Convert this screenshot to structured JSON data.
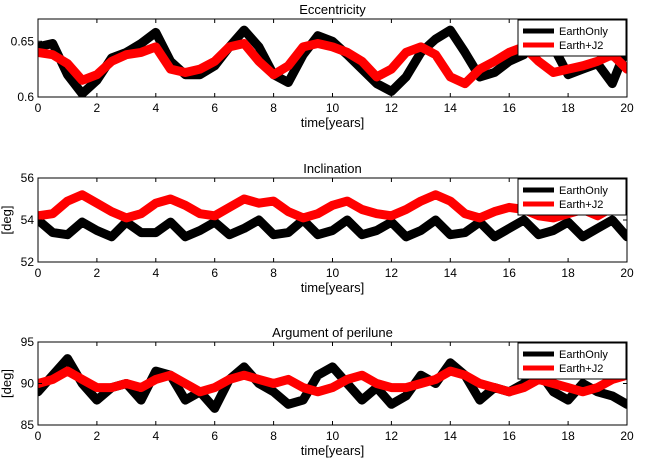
{
  "colors": {
    "earth_only": "#000000",
    "earth_j2": "#ff0000"
  },
  "chart_data": [
    {
      "type": "line",
      "title": "Eccentricity",
      "xlabel": "time[years]",
      "ylabel": "",
      "xlim": [
        0,
        20
      ],
      "ylim": [
        0.6,
        0.67
      ],
      "xticks": [
        0,
        2,
        4,
        6,
        8,
        10,
        12,
        14,
        16,
        18,
        20
      ],
      "yticks": [
        0.6,
        0.65
      ],
      "ytick_labels": [
        "0.6",
        "0.65"
      ],
      "legend": "top-right",
      "grid": false,
      "series": [
        {
          "name": "EarthOnly",
          "color": "#000000",
          "x": [
            0,
            0.5,
            1,
            1.5,
            2,
            2.5,
            3,
            3.5,
            4,
            4.5,
            5,
            5.5,
            6,
            6.5,
            7,
            7.5,
            8,
            8.5,
            9,
            9.5,
            10,
            10.5,
            11,
            11.5,
            12,
            12.5,
            13,
            13.5,
            14,
            14.5,
            15,
            15.5,
            16,
            16.5,
            17,
            17.5,
            18,
            18.5,
            19,
            19.5,
            20
          ],
          "y": [
            0.645,
            0.648,
            0.62,
            0.603,
            0.615,
            0.635,
            0.64,
            0.648,
            0.658,
            0.632,
            0.62,
            0.62,
            0.628,
            0.645,
            0.66,
            0.645,
            0.62,
            0.613,
            0.638,
            0.655,
            0.65,
            0.638,
            0.625,
            0.612,
            0.605,
            0.618,
            0.64,
            0.652,
            0.66,
            0.64,
            0.618,
            0.622,
            0.632,
            0.638,
            0.66,
            0.645,
            0.62,
            0.625,
            0.63,
            0.612,
            0.645
          ]
        },
        {
          "name": "Earth+J2",
          "color": "#ff0000",
          "x": [
            0,
            0.5,
            1,
            1.5,
            2,
            2.5,
            3,
            3.5,
            4,
            4.5,
            5,
            5.5,
            6,
            6.5,
            7,
            7.5,
            8,
            8.5,
            9,
            9.5,
            10,
            10.5,
            11,
            11.5,
            12,
            12.5,
            13,
            13.5,
            14,
            14.5,
            15,
            15.5,
            16,
            16.5,
            17,
            17.5,
            18,
            18.5,
            19,
            19.5,
            20
          ],
          "y": [
            0.64,
            0.638,
            0.63,
            0.615,
            0.62,
            0.632,
            0.638,
            0.64,
            0.645,
            0.625,
            0.622,
            0.625,
            0.632,
            0.645,
            0.648,
            0.632,
            0.62,
            0.628,
            0.645,
            0.648,
            0.645,
            0.64,
            0.632,
            0.618,
            0.625,
            0.64,
            0.645,
            0.638,
            0.618,
            0.612,
            0.625,
            0.632,
            0.64,
            0.645,
            0.632,
            0.622,
            0.625,
            0.628,
            0.632,
            0.638,
            0.625
          ]
        }
      ]
    },
    {
      "type": "line",
      "title": "Inclination",
      "xlabel": "time[years]",
      "ylabel": "[deg]",
      "xlim": [
        0,
        20
      ],
      "ylim": [
        52,
        56
      ],
      "xticks": [
        0,
        2,
        4,
        6,
        8,
        10,
        12,
        14,
        16,
        18,
        20
      ],
      "yticks": [
        52,
        54,
        56
      ],
      "ytick_labels": [
        "52",
        "54",
        "56"
      ],
      "legend": "top-right",
      "grid": false,
      "series": [
        {
          "name": "EarthOnly",
          "color": "#000000",
          "x": [
            0,
            0.5,
            1,
            1.5,
            2,
            2.5,
            3,
            3.5,
            4,
            4.5,
            5,
            5.5,
            6,
            6.5,
            7,
            7.5,
            8,
            8.5,
            9,
            9.5,
            10,
            10.5,
            11,
            11.5,
            12,
            12.5,
            13,
            13.5,
            14,
            14.5,
            15,
            15.5,
            16,
            16.5,
            17,
            17.5,
            18,
            18.5,
            19,
            19.5,
            20
          ],
          "y": [
            54,
            53.4,
            53.3,
            53.9,
            53.5,
            53.2,
            53.9,
            53.4,
            53.4,
            53.9,
            53.2,
            53.5,
            53.9,
            53.3,
            53.6,
            54,
            53.3,
            53.4,
            54,
            53.3,
            53.5,
            54,
            53.3,
            53.5,
            53.9,
            53.2,
            53.5,
            54,
            53.3,
            53.4,
            53.9,
            53.2,
            53.6,
            54,
            53.3,
            53.5,
            53.9,
            53.2,
            53.6,
            54,
            53.2
          ]
        },
        {
          "name": "Earth+J2",
          "color": "#ff0000",
          "x": [
            0,
            0.5,
            1,
            1.5,
            2,
            2.5,
            3,
            3.5,
            4,
            4.5,
            5,
            5.5,
            6,
            6.5,
            7,
            7.5,
            8,
            8.5,
            9,
            9.5,
            10,
            10.5,
            11,
            11.5,
            12,
            12.5,
            13,
            13.5,
            14,
            14.5,
            15,
            15.5,
            16,
            16.5,
            17,
            17.5,
            18,
            18.5,
            19,
            19.5,
            20
          ],
          "y": [
            54.2,
            54.3,
            54.9,
            55.2,
            54.8,
            54.4,
            54.1,
            54.3,
            54.8,
            55,
            54.7,
            54.3,
            54.2,
            54.6,
            55,
            54.8,
            54.9,
            54.4,
            54.1,
            54.3,
            54.7,
            54.9,
            54.5,
            54.3,
            54.2,
            54.5,
            54.9,
            55.2,
            54.9,
            54.3,
            54.1,
            54.4,
            54.6,
            54.5,
            54.2,
            54.1,
            54.3,
            54.5,
            54.2,
            54.6,
            54.9
          ]
        }
      ]
    },
    {
      "type": "line",
      "title": "Argument of perilune",
      "xlabel": "time[years]",
      "ylabel": "[deg]",
      "xlim": [
        0,
        20
      ],
      "ylim": [
        85,
        95
      ],
      "xticks": [
        0,
        2,
        4,
        6,
        8,
        10,
        12,
        14,
        16,
        18,
        20
      ],
      "yticks": [
        85,
        90,
        95
      ],
      "ytick_labels": [
        "85",
        "90",
        "95"
      ],
      "legend": "top-right",
      "grid": false,
      "series": [
        {
          "name": "EarthOnly",
          "color": "#000000",
          "x": [
            0,
            0.5,
            1,
            1.5,
            2,
            2.5,
            3,
            3.5,
            4,
            4.5,
            5,
            5.5,
            6,
            6.5,
            7,
            7.5,
            8,
            8.5,
            9,
            9.5,
            10,
            10.5,
            11,
            11.5,
            12,
            12.5,
            13,
            13.5,
            14,
            14.5,
            15,
            15.5,
            16,
            16.5,
            17,
            17.5,
            18,
            18.5,
            19,
            19.5,
            20
          ],
          "y": [
            89,
            91,
            93,
            90,
            88,
            89.5,
            90,
            88,
            91.5,
            91,
            88,
            89,
            87,
            90.5,
            92,
            90,
            89,
            87.5,
            88,
            91,
            92,
            90,
            88,
            89.5,
            87.5,
            88.5,
            91,
            90,
            92.5,
            91,
            88,
            89.5,
            89,
            90,
            91.5,
            89,
            88,
            90,
            89,
            88.5,
            87.5
          ]
        },
        {
          "name": "Earth+J2",
          "color": "#ff0000",
          "x": [
            0,
            0.5,
            1,
            1.5,
            2,
            2.5,
            3,
            3.5,
            4,
            4.5,
            5,
            5.5,
            6,
            6.5,
            7,
            7.5,
            8,
            8.5,
            9,
            9.5,
            10,
            10.5,
            11,
            11.5,
            12,
            12.5,
            13,
            13.5,
            14,
            14.5,
            15,
            15.5,
            16,
            16.5,
            17,
            17.5,
            18,
            18.5,
            19,
            19.5,
            20
          ],
          "y": [
            90,
            90.5,
            91.5,
            90.5,
            89.5,
            89.5,
            90,
            89.5,
            90.5,
            91,
            90,
            89,
            89.5,
            90.5,
            91,
            90.5,
            90,
            90.5,
            89.5,
            89,
            89.5,
            90.5,
            91,
            90,
            89.5,
            89.5,
            90,
            90.5,
            91.5,
            91,
            90,
            89.5,
            89,
            89.5,
            90.5,
            90,
            89.5,
            89,
            89.5,
            90.5,
            91
          ]
        }
      ]
    }
  ]
}
